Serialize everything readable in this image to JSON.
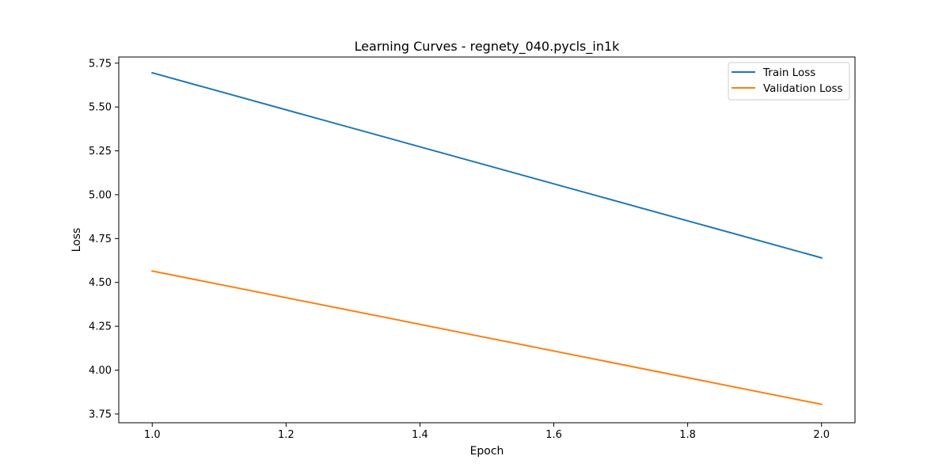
{
  "chart_data": {
    "type": "line",
    "title": "Learning Curves - regnety_040.pycls_in1k",
    "xlabel": "Epoch",
    "ylabel": "Loss",
    "xlim": [
      0.95,
      2.05
    ],
    "ylim": [
      3.7,
      5.785
    ],
    "x_ticks": [
      1.0,
      1.2,
      1.4,
      1.6,
      1.8,
      2.0
    ],
    "x_tick_labels": [
      "1.0",
      "1.2",
      "1.4",
      "1.6",
      "1.8",
      "2.0"
    ],
    "y_ticks": [
      3.75,
      4.0,
      4.25,
      4.5,
      4.75,
      5.0,
      5.25,
      5.5,
      5.75
    ],
    "y_tick_labels": [
      "3.75",
      "4.00",
      "4.25",
      "4.50",
      "4.75",
      "5.00",
      "5.25",
      "5.50",
      "5.75"
    ],
    "grid": false,
    "legend_position": "top-right",
    "series": [
      {
        "name": "Train Loss",
        "color": "#1f77b4",
        "x": [
          1.0,
          2.0
        ],
        "y": [
          5.695,
          4.64
        ]
      },
      {
        "name": "Validation Loss",
        "color": "#ff7f0e",
        "x": [
          1.0,
          2.0
        ],
        "y": [
          4.565,
          3.805
        ]
      }
    ]
  }
}
